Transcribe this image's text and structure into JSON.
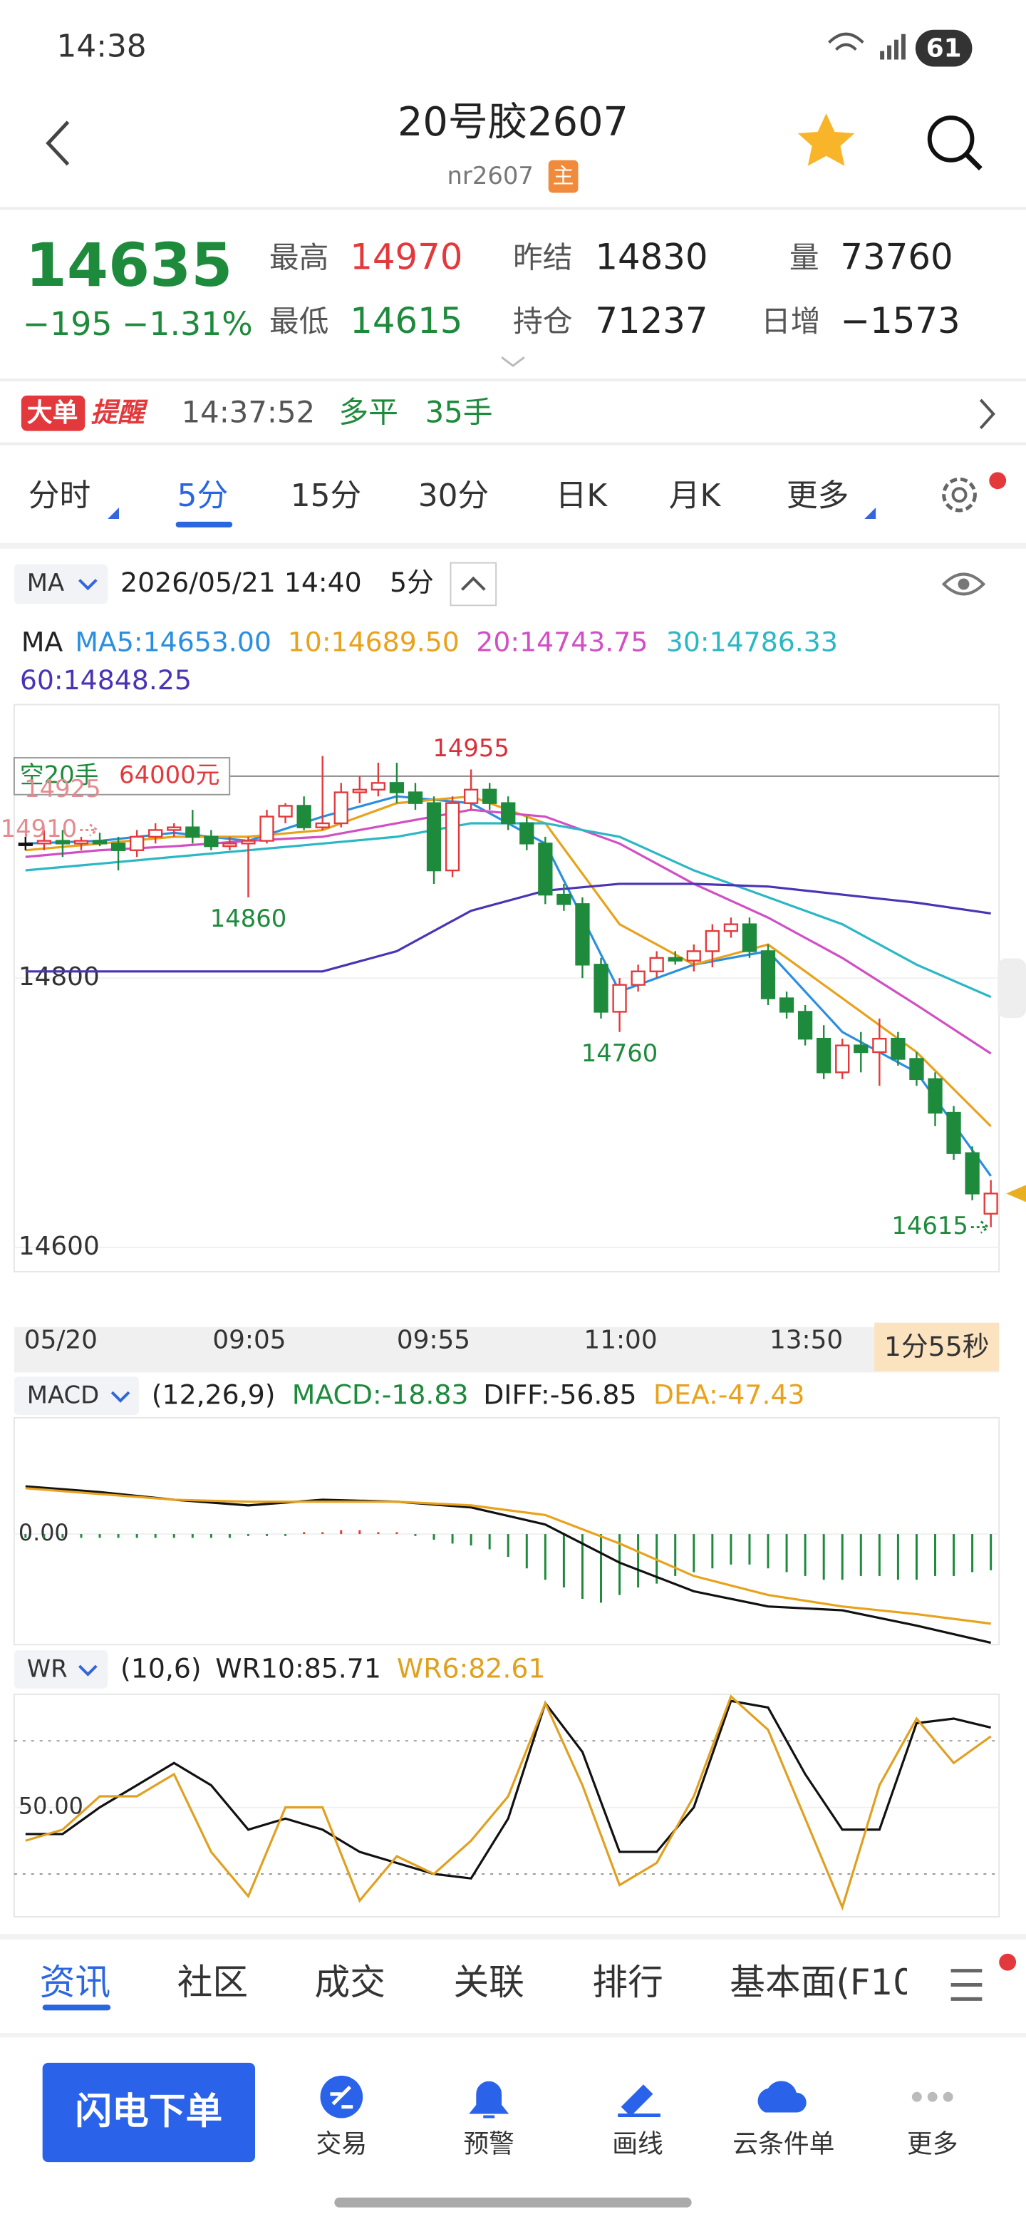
{
  "status_bar": {
    "time": "14:38",
    "battery": "61"
  },
  "header": {
    "title": "20号胶2607",
    "code": "nr2607",
    "badge": "主"
  },
  "quote": {
    "price": "14635",
    "change": "−195",
    "change_pct": "−1.31%",
    "stats": [
      {
        "label": "最高",
        "value": "14970"
      },
      {
        "label": "最低",
        "value": "14615"
      },
      {
        "label": "昨结",
        "value": "14830"
      },
      {
        "label": "持仓",
        "value": "71237"
      },
      {
        "label": "量",
        "value": "73760"
      },
      {
        "label": "日增",
        "value": "−1573"
      }
    ]
  },
  "alert": {
    "badge": "大单",
    "badge2": "提醒",
    "time": "14:37:52",
    "action": "多平",
    "volume": "35手"
  },
  "period_tabs": [
    "分时",
    "5分",
    "15分",
    "30分",
    "日K",
    "月K",
    "更多"
  ],
  "chart_header": {
    "indicator": "MA",
    "datetime": "2026/05/21 14:40",
    "period": "5分"
  },
  "ma_legend": {
    "prefix": "MA",
    "items": [
      "MA5:14653.00",
      "10:14689.50",
      "20:14743.75",
      "30:14786.33",
      "60:14848.25"
    ]
  },
  "time_axis": {
    "labels": [
      "05/20",
      "09:05",
      "09:55",
      "11:00",
      "13:50"
    ],
    "countdown": "1分55秒"
  },
  "macd_header": {
    "name": "MACD",
    "params": "(12,26,9)",
    "macd": "MACD:-18.83",
    "diff": "DIFF:-56.85",
    "dea": "DEA:-47.43"
  },
  "wr_header": {
    "name": "WR",
    "params": "(10,6)",
    "wr10": "WR10:85.71",
    "wr6": "WR6:82.61"
  },
  "bottom_tabs": [
    "资讯",
    "社区",
    "成交",
    "关联",
    "排行",
    "基本面(F10"
  ],
  "toolbar": {
    "button": "闪电下单",
    "items": [
      "交易",
      "预警",
      "画线",
      "云条件单",
      "更多"
    ]
  },
  "chart_data": [
    {
      "type": "candlestick",
      "ylim": [
        14584,
        15000
      ],
      "yticks": [
        14600,
        14800
      ],
      "up_color": "#e4393c",
      "down_color": "#1e8a3c",
      "candles": [
        [
          14900,
          14905,
          14895,
          14900
        ],
        [
          14900,
          14910,
          14895,
          14902
        ],
        [
          14902,
          14910,
          14890,
          14900
        ],
        [
          14900,
          14905,
          14895,
          14902
        ],
        [
          14902,
          14908,
          14898,
          14900
        ],
        [
          14900,
          14905,
          14880,
          14895
        ],
        [
          14895,
          14910,
          14890,
          14905
        ],
        [
          14905,
          14915,
          14900,
          14910
        ],
        [
          14910,
          14915,
          14905,
          14912
        ],
        [
          14912,
          14925,
          14900,
          14905
        ],
        [
          14905,
          14910,
          14895,
          14898
        ],
        [
          14898,
          14905,
          14895,
          14900
        ],
        [
          14900,
          14905,
          14860,
          14902
        ],
        [
          14902,
          14925,
          14900,
          14920
        ],
        [
          14920,
          14930,
          14915,
          14928
        ],
        [
          14928,
          14935,
          14910,
          14912
        ],
        [
          14912,
          14965,
          14910,
          14915
        ],
        [
          14915,
          14945,
          14912,
          14938
        ],
        [
          14938,
          14950,
          14930,
          14940
        ],
        [
          14940,
          14960,
          14935,
          14945
        ],
        [
          14945,
          14960,
          14930,
          14938
        ],
        [
          14938,
          14945,
          14925,
          14930
        ],
        [
          14930,
          14935,
          14870,
          14880
        ],
        [
          14880,
          14935,
          14875,
          14930
        ],
        [
          14930,
          14955,
          14925,
          14940
        ],
        [
          14940,
          14945,
          14925,
          14930
        ],
        [
          14930,
          14935,
          14910,
          14915
        ],
        [
          14915,
          14920,
          14895,
          14900
        ],
        [
          14900,
          14905,
          14855,
          14862
        ],
        [
          14862,
          14870,
          14850,
          14855
        ],
        [
          14855,
          14860,
          14800,
          14810
        ],
        [
          14810,
          14815,
          14770,
          14775
        ],
        [
          14775,
          14800,
          14760,
          14795
        ],
        [
          14795,
          14810,
          14790,
          14805
        ],
        [
          14805,
          14820,
          14800,
          14815
        ],
        [
          14815,
          14820,
          14810,
          14813
        ],
        [
          14813,
          14825,
          14805,
          14820
        ],
        [
          14820,
          14840,
          14808,
          14835
        ],
        [
          14835,
          14845,
          14830,
          14840
        ],
        [
          14840,
          14845,
          14815,
          14820
        ],
        [
          14820,
          14825,
          14780,
          14785
        ],
        [
          14785,
          14790,
          14770,
          14775
        ],
        [
          14775,
          14780,
          14750,
          14755
        ],
        [
          14755,
          14765,
          14725,
          14730
        ],
        [
          14730,
          14755,
          14725,
          14750
        ],
        [
          14750,
          14760,
          14730,
          14745
        ],
        [
          14745,
          14770,
          14720,
          14755
        ],
        [
          14755,
          14760,
          14735,
          14740
        ],
        [
          14740,
          14745,
          14720,
          14725
        ],
        [
          14725,
          14730,
          14690,
          14700
        ],
        [
          14700,
          14705,
          14665,
          14670
        ],
        [
          14670,
          14675,
          14635,
          14640
        ],
        [
          14625,
          14650,
          14615,
          14640
        ]
      ],
      "x": [
        0,
        4,
        8,
        12,
        16,
        20,
        24,
        28,
        32,
        36,
        40,
        44,
        48,
        52
      ],
      "series": [
        {
          "name": "MA5",
          "color": "#2a8fe0",
          "values": [
            14900,
            14902,
            14908,
            14902,
            14920,
            14935,
            14930,
            14900,
            14790,
            14810,
            14820,
            14760,
            14730,
            14653
          ]
        },
        {
          "name": "MA10",
          "color": "#e8a21c",
          "values": [
            14895,
            14900,
            14905,
            14905,
            14910,
            14930,
            14935,
            14915,
            14840,
            14810,
            14825,
            14785,
            14745,
            14690
          ]
        },
        {
          "name": "MA20",
          "color": "#d14fc4",
          "values": [
            14890,
            14895,
            14898,
            14902,
            14905,
            14915,
            14925,
            14920,
            14900,
            14870,
            14845,
            14815,
            14780,
            14744
          ]
        },
        {
          "name": "MA30",
          "color": "#2bb7c4",
          "values": [
            14880,
            14885,
            14890,
            14895,
            14900,
            14905,
            14915,
            14915,
            14905,
            14880,
            14860,
            14840,
            14810,
            14786
          ]
        },
        {
          "name": "MA60",
          "color": "#4b33b5",
          "values": [
            14805,
            14805,
            14805,
            14805,
            14805,
            14820,
            14850,
            14865,
            14870,
            14870,
            14868,
            14862,
            14856,
            14848
          ]
        }
      ],
      "annotations": [
        {
          "value": 14955,
          "at": 24,
          "color": "#d8303a",
          "pos": "above"
        },
        {
          "value": 14860,
          "at": 12,
          "color": "#1e8a3c",
          "pos": "below"
        },
        {
          "value": 14760,
          "at": 32,
          "color": "#1e8a3c",
          "pos": "below"
        },
        {
          "value": 14615,
          "at": 52,
          "color": "#1e8a3c",
          "pos": "left"
        },
        {
          "value": 14925,
          "at": 2,
          "color": "#e58a8e",
          "pos": "above"
        },
        {
          "value": 14910,
          "at": 4,
          "color": "#e58a8e",
          "pos": "left"
        }
      ],
      "position_line": {
        "label": "空20手",
        "amount": "64000元",
        "price": 14950
      }
    },
    {
      "type": "macd",
      "ylim": [
        -58,
        61
      ],
      "yticks": [
        {
          "value": 0,
          "label": "0.00"
        }
      ],
      "x": [
        0,
        4,
        8,
        12,
        16,
        20,
        24,
        28,
        32,
        36,
        40,
        44,
        48,
        52
      ],
      "series": [
        {
          "name": "DIFF",
          "color": "#111111",
          "values": [
            25,
            22,
            18,
            15,
            18,
            17,
            14,
            5,
            -15,
            -30,
            -38,
            -40,
            -48,
            -57
          ]
        },
        {
          "name": "DEA",
          "color": "#e8a21c",
          "values": [
            24,
            21,
            18,
            17,
            17,
            17,
            15,
            10,
            -5,
            -22,
            -32,
            -38,
            -42,
            -47
          ]
        }
      ],
      "histogram": [
        -2,
        -2,
        -2,
        -2,
        -2,
        -2,
        -2,
        -2,
        -2,
        -2,
        -2,
        -2,
        -1,
        -1,
        -1,
        1,
        1,
        2,
        2,
        1,
        1,
        -1,
        -3,
        -5,
        -6,
        -8,
        -12,
        -18,
        -24,
        -28,
        -34,
        -36,
        -32,
        -28,
        -26,
        -22,
        -20,
        -18,
        -16,
        -16,
        -18,
        -20,
        -22,
        -24,
        -24,
        -22,
        -22,
        -24,
        -24,
        -22,
        -22,
        -20,
        -19
      ]
    },
    {
      "type": "wr",
      "ylim": [
        2,
        101
      ],
      "yticks": [
        {
          "value": 50,
          "label": "50.00"
        }
      ],
      "ref_lines": [
        20,
        80
      ],
      "x": [
        0,
        2,
        4,
        6,
        8,
        10,
        12,
        14,
        16,
        18,
        20,
        22,
        24,
        26,
        28,
        30,
        32,
        34,
        36,
        38,
        40,
        42,
        44,
        46,
        48,
        50,
        52
      ],
      "series": [
        {
          "name": "WR10",
          "color": "#111111",
          "values": [
            38,
            38,
            50,
            60,
            70,
            60,
            40,
            45,
            40,
            30,
            25,
            20,
            18,
            45,
            97,
            75,
            30,
            30,
            50,
            98,
            95,
            65,
            40,
            40,
            88,
            90,
            86
          ]
        },
        {
          "name": "WR6",
          "color": "#e0a020",
          "values": [
            35,
            40,
            55,
            55,
            65,
            30,
            10,
            50,
            50,
            8,
            28,
            20,
            35,
            55,
            97,
            60,
            15,
            25,
            55,
            100,
            85,
            45,
            5,
            60,
            90,
            70,
            82
          ]
        }
      ]
    }
  ]
}
